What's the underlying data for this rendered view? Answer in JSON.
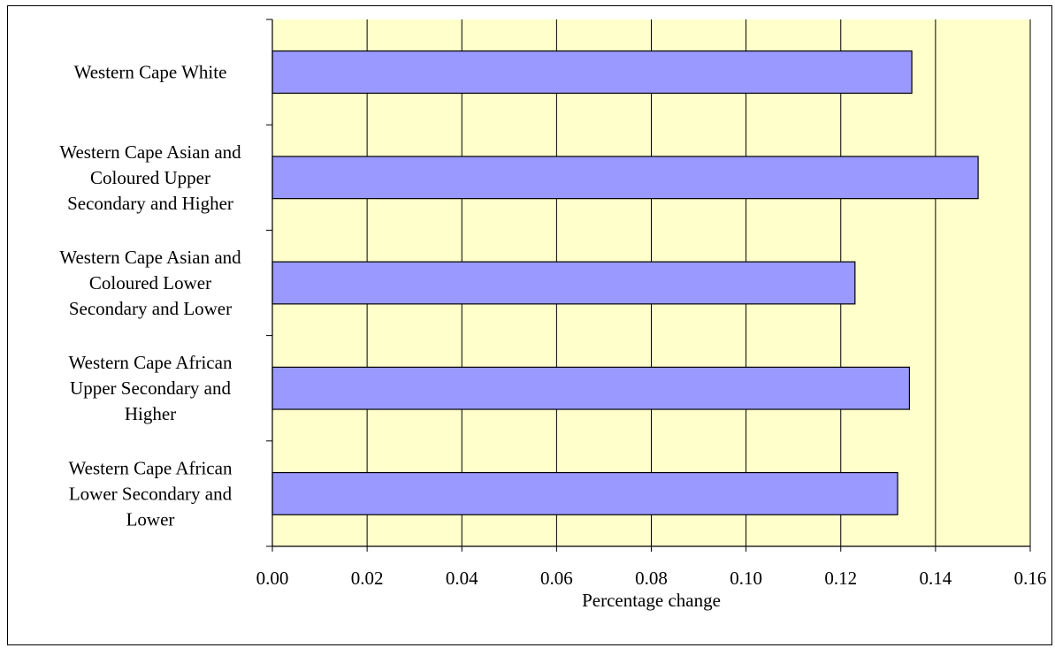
{
  "chart_data": {
    "type": "bar",
    "orientation": "horizontal",
    "categories": [
      [
        "Western Cape White"
      ],
      [
        "Western Cape Asian and",
        "Coloured Upper",
        "Secondary and Higher"
      ],
      [
        "Western Cape Asian and",
        "Coloured Lower",
        "Secondary and Lower"
      ],
      [
        "Western Cape African",
        "Upper Secondary and",
        "Higher"
      ],
      [
        "Western Cape African",
        "Lower Secondary and",
        "Lower"
      ]
    ],
    "values": [
      0.135,
      0.149,
      0.123,
      0.1345,
      0.132
    ],
    "xlabel": "Percentage change",
    "ylabel": "",
    "xlim": [
      0,
      0.16
    ],
    "xticks": [
      "0.00",
      "0.02",
      "0.04",
      "0.06",
      "0.08",
      "0.10",
      "0.12",
      "0.14",
      "0.16"
    ],
    "grid": "vertical",
    "legend": "none",
    "colors": {
      "plot_background": "#FFFFCC",
      "bar_fill": "#9999FF",
      "bar_stroke": "#000000",
      "grid": "#000000"
    }
  }
}
